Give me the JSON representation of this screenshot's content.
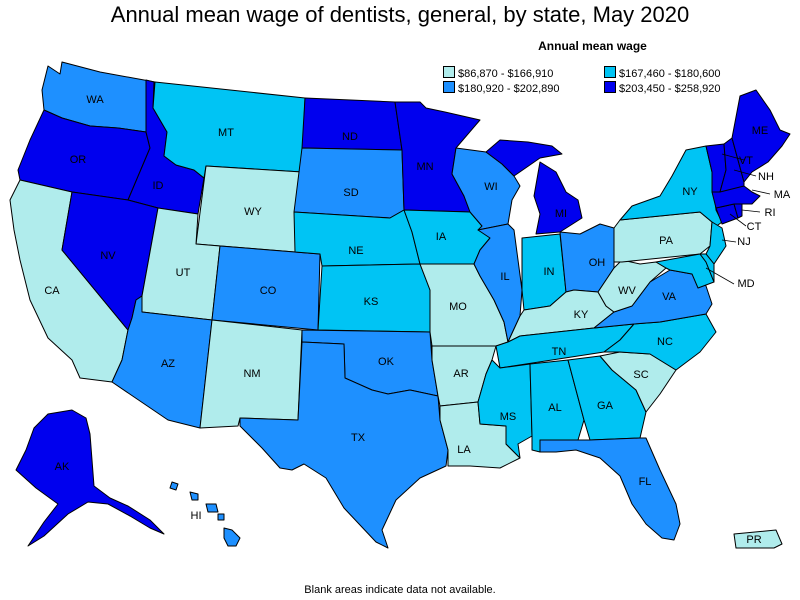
{
  "title": "Annual mean wage of dentists, general, by state, May 2020",
  "legend": {
    "title": "Annual mean wage",
    "items": [
      {
        "label": "$86,870 - $166,910",
        "color": "#b0ecec"
      },
      {
        "label": "$167,460 - $180,600",
        "color": "#00c4f4"
      },
      {
        "label": "$180,920 - $202,890",
        "color": "#1e90ff"
      },
      {
        "label": "$203,450 - $258,920",
        "color": "#0000ee"
      }
    ]
  },
  "footnote": "Blank areas indicate data not available.",
  "states": {
    "WA": {
      "label": "WA",
      "tier": 2
    },
    "OR": {
      "label": "OR",
      "tier": 3
    },
    "CA": {
      "label": "CA",
      "tier": 0
    },
    "ID": {
      "label": "ID",
      "tier": 3
    },
    "NV": {
      "label": "NV",
      "tier": 3
    },
    "MT": {
      "label": "MT",
      "tier": 1
    },
    "WY": {
      "label": "WY",
      "tier": 0
    },
    "UT": {
      "label": "UT",
      "tier": 0
    },
    "AZ": {
      "label": "AZ",
      "tier": 2
    },
    "CO": {
      "label": "CO",
      "tier": 2
    },
    "NM": {
      "label": "NM",
      "tier": 0
    },
    "ND": {
      "label": "ND",
      "tier": 3
    },
    "SD": {
      "label": "SD",
      "tier": 2
    },
    "NE": {
      "label": "NE",
      "tier": 1
    },
    "KS": {
      "label": "KS",
      "tier": 1
    },
    "OK": {
      "label": "OK",
      "tier": 2
    },
    "TX": {
      "label": "TX",
      "tier": 2
    },
    "MN": {
      "label": "MN",
      "tier": 3
    },
    "IA": {
      "label": "IA",
      "tier": 1
    },
    "MO": {
      "label": "MO",
      "tier": 0
    },
    "AR": {
      "label": "AR",
      "tier": 0
    },
    "LA": {
      "label": "LA",
      "tier": 0
    },
    "WI": {
      "label": "WI",
      "tier": 2
    },
    "IL": {
      "label": "IL",
      "tier": 2
    },
    "MI": {
      "label": "MI",
      "tier": 3
    },
    "IN": {
      "label": "IN",
      "tier": 1
    },
    "OH": {
      "label": "OH",
      "tier": 2
    },
    "KY": {
      "label": "KY",
      "tier": 0
    },
    "TN": {
      "label": "TN",
      "tier": 1
    },
    "MS": {
      "label": "MS",
      "tier": 1
    },
    "AL": {
      "label": "AL",
      "tier": 1
    },
    "GA": {
      "label": "GA",
      "tier": 1
    },
    "FL": {
      "label": "FL",
      "tier": 2
    },
    "SC": {
      "label": "SC",
      "tier": 0
    },
    "NC": {
      "label": "NC",
      "tier": 1
    },
    "VA": {
      "label": "VA",
      "tier": 2
    },
    "WV": {
      "label": "WV",
      "tier": 0
    },
    "PA": {
      "label": "PA",
      "tier": 0
    },
    "NY": {
      "label": "NY",
      "tier": 1
    },
    "NJ": {
      "label": "NJ",
      "tier": 1
    },
    "MD": {
      "label": "MD",
      "tier": 1
    },
    "DE": {
      "label": "",
      "tier": 1
    },
    "CT": {
      "label": "CT",
      "tier": 3
    },
    "RI": {
      "label": "RI",
      "tier": 3
    },
    "MA": {
      "label": "MA",
      "tier": 3
    },
    "VT": {
      "label": "VT",
      "tier": 3
    },
    "NH": {
      "label": "NH",
      "tier": 3
    },
    "ME": {
      "label": "ME",
      "tier": 3
    },
    "AK": {
      "label": "AK",
      "tier": 3
    },
    "HI": {
      "label": "HI",
      "tier": 2
    },
    "PR": {
      "label": "PR",
      "tier": 0
    }
  }
}
